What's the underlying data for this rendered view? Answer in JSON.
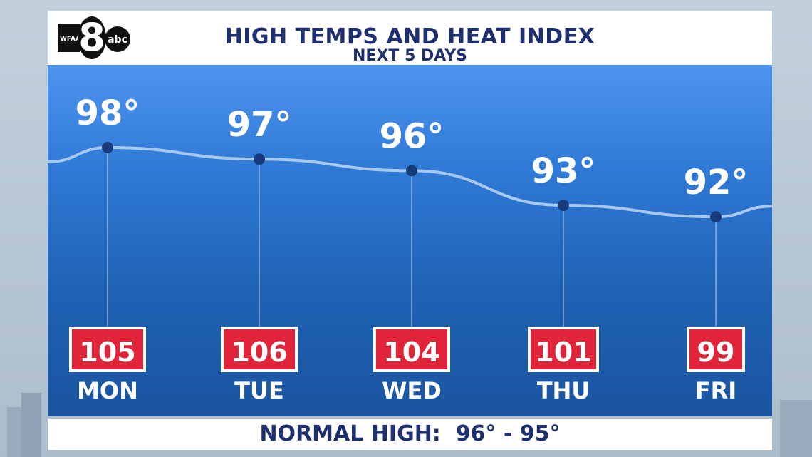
{
  "header": {
    "title": "HIGH TEMPS AND HEAT INDEX",
    "subtitle": "NEXT 5 DAYS"
  },
  "logo": {
    "station": "WFAA",
    "channel": "8",
    "network": "abc"
  },
  "footer": {
    "label": "NORMAL HIGH:",
    "value": "96° - 95°"
  },
  "colors": {
    "panel_top": "#4d94ef",
    "panel_bottom": "#1a54a0",
    "title_text": "#1d2f6f",
    "heat_index_box": "#e0243a",
    "point": "#163a7a",
    "line": "#a9c8ee"
  },
  "chart_data": {
    "type": "line",
    "categories": [
      "MON",
      "TUE",
      "WED",
      "THU",
      "FRI"
    ],
    "series": [
      {
        "values": [
          98,
          97,
          96,
          93,
          92
        ],
        "labels": [
          "98°",
          "97°",
          "96°",
          "93°",
          "92°"
        ]
      }
    ],
    "heat_index": [
      105,
      106,
      104,
      101,
      99
    ],
    "title": "HIGH TEMPS AND HEAT INDEX",
    "subtitle": "NEXT 5 DAYS"
  }
}
